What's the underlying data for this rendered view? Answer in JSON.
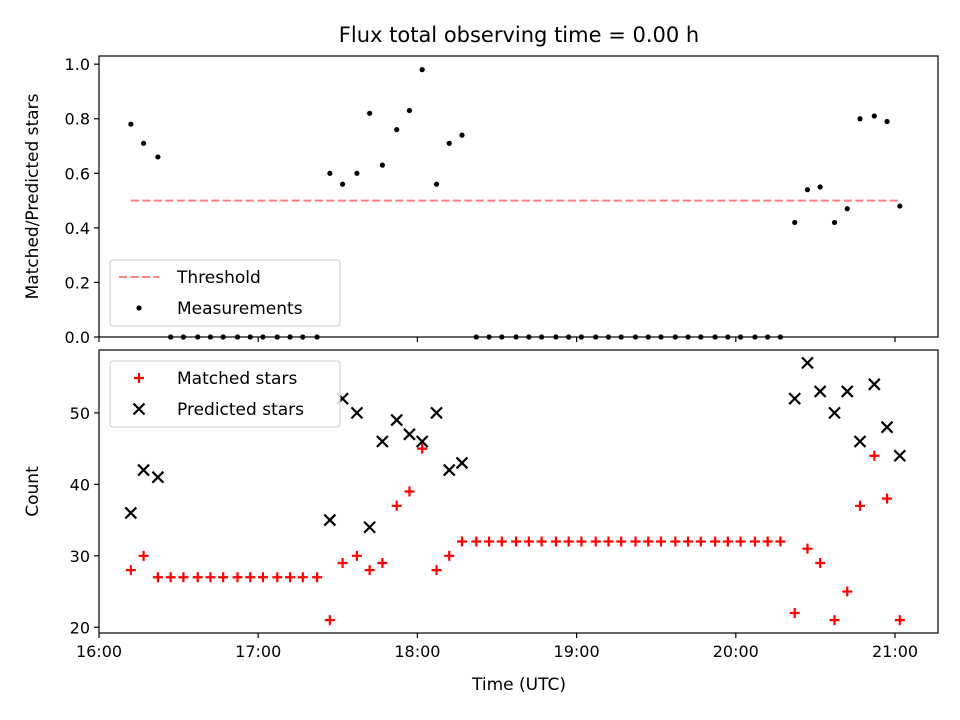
{
  "figure_title": "Flux total observing time = 0.00 h",
  "x_axis": {
    "label": "Time (UTC)",
    "unit": "hours UTC",
    "range": [
      16.0,
      21.27
    ],
    "ticks": [
      16,
      17,
      18,
      19,
      20,
      21
    ],
    "tick_labels": [
      "16:00",
      "17:00",
      "18:00",
      "19:00",
      "20:00",
      "21:00"
    ]
  },
  "chart_data": [
    {
      "type": "scatter",
      "ylabel": "Matched/Predicted stars",
      "ylim": [
        0,
        1.03
      ],
      "yticks": [
        0.0,
        0.2,
        0.4,
        0.6,
        0.8,
        1.0
      ],
      "ytick_labels": [
        "0.0",
        "0.2",
        "0.4",
        "0.6",
        "0.8",
        "1.0"
      ],
      "legend_position": "lower-left",
      "threshold": {
        "name": "Threshold",
        "value": 0.5,
        "x_range": [
          16.2,
          21.03
        ],
        "color": "#ff7f7f",
        "style": "dashed"
      },
      "series": [
        {
          "name": "Measurements",
          "marker": "dot",
          "color": "#000000",
          "x": [
            16.2,
            16.28,
            16.37,
            16.45,
            16.53,
            16.62,
            16.7,
            16.78,
            16.87,
            16.95,
            17.03,
            17.12,
            17.2,
            17.28,
            17.37,
            17.45,
            17.53,
            17.62,
            17.7,
            17.78,
            17.87,
            17.95,
            18.03,
            18.12,
            18.2,
            18.28,
            18.37,
            18.45,
            18.53,
            18.62,
            18.7,
            18.78,
            18.87,
            18.95,
            19.03,
            19.12,
            19.2,
            19.28,
            19.37,
            19.45,
            19.53,
            19.62,
            19.7,
            19.78,
            19.87,
            19.95,
            20.03,
            20.12,
            20.2,
            20.28,
            20.37,
            20.45,
            20.53,
            20.62,
            20.7,
            20.78,
            20.87,
            20.95,
            21.03
          ],
          "y": [
            0.78,
            0.71,
            0.66,
            0.0,
            0.0,
            0.0,
            0.0,
            0.0,
            0.0,
            0.0,
            0.0,
            0.0,
            0.0,
            0.0,
            0.0,
            0.6,
            0.56,
            0.6,
            0.82,
            0.63,
            0.76,
            0.83,
            0.98,
            0.56,
            0.71,
            0.74,
            0.0,
            0.0,
            0.0,
            0.0,
            0.0,
            0.0,
            0.0,
            0.0,
            0.0,
            0.0,
            0.0,
            0.0,
            0.0,
            0.0,
            0.0,
            0.0,
            0.0,
            0.0,
            0.0,
            0.0,
            0.0,
            0.0,
            0.0,
            0.0,
            0.42,
            0.54,
            0.55,
            0.42,
            0.47,
            0.8,
            0.81,
            0.79,
            0.48
          ]
        }
      ]
    },
    {
      "type": "scatter",
      "ylabel": "Count",
      "ylim": [
        19.2,
        58.8
      ],
      "yticks": [
        20,
        30,
        40,
        50
      ],
      "ytick_labels": [
        "20",
        "30",
        "40",
        "50"
      ],
      "legend_position": "upper-left",
      "series": [
        {
          "name": "Matched stars",
          "marker": "plus",
          "color": "#ff0000",
          "x": [
            16.2,
            16.28,
            16.37,
            16.45,
            16.53,
            16.62,
            16.7,
            16.78,
            16.87,
            16.95,
            17.03,
            17.12,
            17.2,
            17.28,
            17.37,
            17.45,
            17.53,
            17.62,
            17.7,
            17.78,
            17.87,
            17.95,
            18.03,
            18.12,
            18.2,
            18.28,
            18.37,
            18.45,
            18.53,
            18.62,
            18.7,
            18.78,
            18.87,
            18.95,
            19.03,
            19.12,
            19.2,
            19.28,
            19.37,
            19.45,
            19.53,
            19.62,
            19.7,
            19.78,
            19.87,
            19.95,
            20.03,
            20.12,
            20.2,
            20.28,
            20.37,
            20.45,
            20.53,
            20.62,
            20.7,
            20.78,
            20.87,
            20.95,
            21.03
          ],
          "y": [
            28,
            30,
            27,
            27,
            27,
            27,
            27,
            27,
            27,
            27,
            27,
            27,
            27,
            27,
            27,
            21,
            29,
            30,
            28,
            29,
            37,
            39,
            45,
            28,
            30,
            32,
            32,
            32,
            32,
            32,
            32,
            32,
            32,
            32,
            32,
            32,
            32,
            32,
            32,
            32,
            32,
            32,
            32,
            32,
            32,
            32,
            32,
            32,
            32,
            32,
            22,
            31,
            29,
            21,
            25,
            37,
            44,
            38,
            21
          ]
        },
        {
          "name": "Predicted stars",
          "marker": "x",
          "color": "#000000",
          "x": [
            16.2,
            16.28,
            16.37,
            17.45,
            17.53,
            17.62,
            17.7,
            17.78,
            17.87,
            17.95,
            18.03,
            18.12,
            18.2,
            18.28,
            20.37,
            20.45,
            20.53,
            20.62,
            20.7,
            20.78,
            20.87,
            20.95,
            21.03
          ],
          "y": [
            36,
            42,
            41,
            35,
            52,
            50,
            34,
            46,
            49,
            47,
            46,
            50,
            42,
            43,
            52,
            57,
            53,
            50,
            53,
            46,
            54,
            48,
            44
          ]
        }
      ]
    }
  ]
}
